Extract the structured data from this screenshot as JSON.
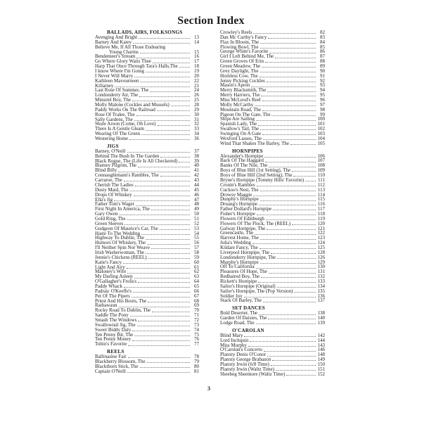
{
  "title": "Section Index",
  "page_number": "3",
  "columns": [
    [
      {
        "heading": "BALLADS, AIRS, FOLKSONGS",
        "entries": [
          {
            "name": "Avenging And Bright",
            "page": "13"
          },
          {
            "name": "Barney And Katey",
            "page": "14"
          },
          {
            "name": "Believe Me, If All Those Endearing",
            "cont": "Young Charms",
            "page": "15"
          },
          {
            "name": "Bendemeer's Stream",
            "page": "16"
          },
          {
            "name": "Go Where Glory Waits Thee",
            "page": "17"
          },
          {
            "name": "Harp That Once Through Tara's Halls,The",
            "page": "18"
          },
          {
            "name": "I know Where I'm Going",
            "page": "19"
          },
          {
            "name": "I Never Will Marry",
            "page": "20"
          },
          {
            "name": "Kathleen Mavourneen",
            "page": "22"
          },
          {
            "name": "Killarney",
            "page": "21"
          },
          {
            "name": "Last Rose Of Summer, The",
            "page": "24"
          },
          {
            "name": "Londonderry Air, The",
            "page": "26"
          },
          {
            "name": "Minstrel Boy, The",
            "page": "25"
          },
          {
            "name": "Molly Malone (Cockles and Mussels)",
            "page": "28"
          },
          {
            "name": "Paddy Works On The Railroad",
            "page": "29"
          },
          {
            "name": "Rose Of Tralee, The",
            "page": "30"
          },
          {
            "name": "Sally Gardens, The",
            "page": "31"
          },
          {
            "name": "Shule Aroon (Come, Oh Love)",
            "page": "32"
          },
          {
            "name": "There Is A Gentle Gleam",
            "page": "33"
          },
          {
            "name": "Wearing Of The Green",
            "page": "34"
          },
          {
            "name": "Westering Home",
            "page": "36"
          }
        ]
      },
      {
        "heading": "JIGS",
        "entries": [
          {
            "name": "Barney, O'Neill",
            "page": "37"
          },
          {
            "name": "Behind The Bush In The Garden",
            "page": "38"
          },
          {
            "name": "Black Rogue, The (Life Is All Checkered)",
            "page": "39"
          },
          {
            "name": "Blarney Pilgrim, The",
            "page": "40"
          },
          {
            "name": "Blind Billy",
            "page": "41"
          },
          {
            "name": "Connaughtmann's Rambles, The",
            "page": "42"
          },
          {
            "name": "Carraroe, The",
            "page": "43"
          },
          {
            "name": "Cherish The Ladies",
            "page": "44"
          },
          {
            "name": "Dusty Maid, The",
            "page": "45"
          },
          {
            "name": "Drops Of Whiskey",
            "page": "46"
          },
          {
            "name": "Ella's Jig",
            "page": "47"
          },
          {
            "name": "Father Tom's Wager",
            "page": "48"
          },
          {
            "name": "First Night In America, The",
            "page": "49"
          },
          {
            "name": "Gary Owen",
            "page": "50"
          },
          {
            "name": "Gold Ring, The",
            "page": "51"
          },
          {
            "name": "Green Sleeves",
            "page": "52"
          },
          {
            "name": "Gudgeon Of Maurice's Car, The",
            "page": "53"
          },
          {
            "name": "Haste To The Wedding",
            "page": "54"
          },
          {
            "name": "Highway To Dublin, The",
            "page": "55"
          },
          {
            "name": "Humors Of Whiskey, The",
            "page": "56"
          },
          {
            "name": "I'll Neither Spin Nor Weave",
            "page": "57"
          },
          {
            "name": "Irish Washerwoman, The",
            "page": "58"
          },
          {
            "name": "Jennie's Chickens (REEL)",
            "page": "59"
          },
          {
            "name": "Katie's Fancy",
            "page": "60"
          },
          {
            "name": "Light And Airy",
            "page": "61"
          },
          {
            "name": "Maloney's Wife",
            "page": "62"
          },
          {
            "name": "My Darling Asleep",
            "page": "63"
          },
          {
            "name": "O'Gallagher's Frolics",
            "page": "64"
          },
          {
            "name": "Paddy Whack",
            "page": "65"
          },
          {
            "name": "Padraic O'Keeffe's",
            "page": "66"
          },
          {
            "name": "Pet Of The Pipers",
            "page": "67"
          },
          {
            "name": "Priest And His Boots, The",
            "page": "68"
          },
          {
            "name": "Rathawaun",
            "page": "69"
          },
          {
            "name": "Rocky Road To Dublin, The",
            "page": "70"
          },
          {
            "name": "Saddle The Pony",
            "page": "71"
          },
          {
            "name": "Smash The Windows",
            "page": "72"
          },
          {
            "name": "Swallowtail Jig, The",
            "page": "73"
          },
          {
            "name": "Sweet Biddy Daly",
            "page": "74"
          },
          {
            "name": "Ten Penny Bit, The",
            "page": "75"
          },
          {
            "name": "Ten Penny Money",
            "page": "76"
          },
          {
            "name": "Tobin's Favorite",
            "page": "77"
          }
        ]
      },
      {
        "heading": "REELS",
        "entries": [
          {
            "name": "Ballinasloe Fair",
            "page": "78"
          },
          {
            "name": "Blackberry Blossom, The",
            "page": "79"
          },
          {
            "name": "Blackthorn Stick, The",
            "page": "80"
          },
          {
            "name": "Captain O'Neill",
            "page": "81"
          }
        ]
      }
    ],
    [
      {
        "heading": "",
        "entries": [
          {
            "name": "Crowley's Reels",
            "page": "82"
          },
          {
            "name": "Dan Mc Carthy's Fancy",
            "page": "83"
          },
          {
            "name": "Flax In Bloom, The",
            "page": "84"
          },
          {
            "name": "Flowing Bowl, The",
            "page": "85"
          },
          {
            "name": "George White's Favorite",
            "page": "86"
          },
          {
            "name": "Girl I Left Behind Me, The",
            "page": "87"
          },
          {
            "name": "Green Groves Of Erin",
            "page": "88"
          },
          {
            "name": "Green Meadow, The",
            "page": "89"
          },
          {
            "name": "Grey Daylight, The",
            "page": "90"
          },
          {
            "name": "Hornless Cow, The",
            "page": "91"
          },
          {
            "name": "Jenny Picking Cockles",
            "page": "92"
          },
          {
            "name": "Mason's Apron",
            "page": "93"
          },
          {
            "name": "Merry Blacksmith, The",
            "page": "94"
          },
          {
            "name": "Merry Harriers, The",
            "page": "95"
          },
          {
            "name": "Miss McLeod's Reel",
            "page": "96"
          },
          {
            "name": "Molly McCarthy",
            "page": "97"
          },
          {
            "name": "Mountain Road, The",
            "page": "98"
          },
          {
            "name": "Pigeon On The Gate, The",
            "page": "99"
          },
          {
            "name": "Ships Are Sailing",
            "page": "100"
          },
          {
            "name": "Spanish Lady, The",
            "page": "101"
          },
          {
            "name": "Swallow's Tail, The",
            "page": "102"
          },
          {
            "name": "Swinging On A Gate",
            "page": "103"
          },
          {
            "name": "Wexford Lasses, The",
            "page": "104"
          },
          {
            "name": "Wind That Shakes The Barley, The",
            "page": "105"
          }
        ]
      },
      {
        "heading": "HORNPIPES",
        "entries": [
          {
            "name": "Alexander's Hornpipe",
            "page": "106"
          },
          {
            "name": "Back Of The Haggard",
            "page": "107"
          },
          {
            "name": "Banks Of The Nile, The",
            "page": "108"
          },
          {
            "name": "Boys of Blue Hill (1st Setting), The",
            "page": "109"
          },
          {
            "name": "Boys of Blue Hill (2nd Setting), The",
            "page": "110"
          },
          {
            "name": "Bryne's Hornpipe (Tommy Hills' Favorite)",
            "page": "111"
          },
          {
            "name": "Cronin's Rambles",
            "page": "112"
          },
          {
            "name": "Cuckoo's Nest, The",
            "page": "113"
          },
          {
            "name": "Drowsy Maggie",
            "page": "114"
          },
          {
            "name": "Dunphy's Hornpipe",
            "page": "115"
          },
          {
            "name": "Druang's Hornpipe",
            "page": "116"
          },
          {
            "name": "Father Dollard's Hornpipe",
            "page": "117"
          },
          {
            "name": "Fisher's Hornpipe",
            "page": "118"
          },
          {
            "name": "Flowers Of Edinburgh",
            "page": "119"
          },
          {
            "name": "Flowers Of The Flock, The (REEL)",
            "page": "120"
          },
          {
            "name": "Galway Hornpipe, The",
            "page": "121"
          },
          {
            "name": "Greencastle, The",
            "page": "122"
          },
          {
            "name": "Harvest Home, The",
            "page": "123"
          },
          {
            "name": "Julia's Wedding",
            "page": "124"
          },
          {
            "name": "Kildare Fancy, The",
            "page": "125"
          },
          {
            "name": "Liverpool Hornpipe, The",
            "page": "128"
          },
          {
            "name": "Londonderry Hornpipe, The",
            "page": "126"
          },
          {
            "name": "Murphy's Hornpipe",
            "page": "129"
          },
          {
            "name": "Off To California",
            "page": "130"
          },
          {
            "name": "Pleasures Of Hope, The",
            "page": "131"
          },
          {
            "name": "Redhaired Boy, The",
            "page": "132"
          },
          {
            "name": "Rickett's Hornpipe",
            "page": "133"
          },
          {
            "name": "Sailor's Hornpipe (Original)",
            "page": "134"
          },
          {
            "name": "Sailor's Hornpipe, The (Pop Version)",
            "page": "135"
          },
          {
            "name": "Soldier Joy",
            "page": "136"
          },
          {
            "name": "Stack Of Barley, The",
            "page": "137"
          }
        ]
      },
      {
        "heading": "SET DANCES",
        "entries": [
          {
            "name": "Bold Deserter, The",
            "page": "138"
          },
          {
            "name": "Garden Of Daisies, The",
            "page": "140"
          },
          {
            "name": "Lodge Road, The",
            "page": "139"
          }
        ]
      },
      {
        "heading": "O'CAROLAN",
        "entries": [
          {
            "name": "Blind Mary",
            "page": "142"
          },
          {
            "name": "Lord Inchquin",
            "page": "144"
          },
          {
            "name": "Miss Murphy",
            "page": "143"
          },
          {
            "name": "O'Carolan's Concerto",
            "page": "146"
          },
          {
            "name": "Planxty Denis O'Conor",
            "page": "148"
          },
          {
            "name": "Planxty George Brabazon",
            "page": "149"
          },
          {
            "name": "Planxty Irwin (6/8 Time)",
            "page": "150"
          },
          {
            "name": "Planxty Irwin (Waltz Time)",
            "page": "151"
          },
          {
            "name": "Sheebeg Sheemore (Waltz Time)",
            "page": "152"
          }
        ]
      }
    ]
  ]
}
